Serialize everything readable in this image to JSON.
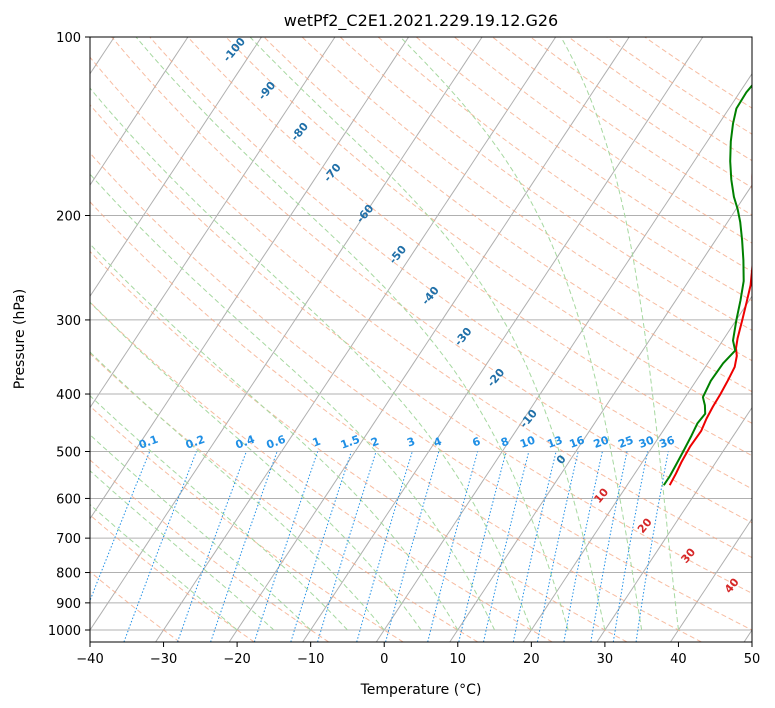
{
  "chart_data": {
    "type": "line",
    "title": "wetPf2_C2E1.2021.229.19.12.G26",
    "xlabel": "Temperature (°C)",
    "ylabel": "Pressure (hPa)",
    "xlim": [
      -40,
      50
    ],
    "ylim": [
      1050,
      100
    ],
    "y_scale": "log",
    "x_ticks": [
      -40,
      -30,
      -20,
      -10,
      0,
      10,
      20,
      30,
      40,
      50
    ],
    "y_ticks": [
      1000,
      900,
      800,
      700,
      600,
      500,
      400,
      300,
      200,
      100
    ],
    "grid": true,
    "colors": {
      "temperature": "#ee0000",
      "dewpoint": "#008000",
      "isotherm": "#b0b0b0",
      "dry_adiabat": "#f4a582",
      "moist_adiabat": "#a6d8a0",
      "mixing_ratio": "#1f8fe5",
      "moist_label": "#1f6fa8",
      "dry_label": "#d62728"
    },
    "series": [
      {
        "name": "Temperature",
        "points": [
          [
            25.8,
            570
          ],
          [
            25.6,
            545
          ],
          [
            25.3,
            520
          ],
          [
            25.1,
            490
          ],
          [
            25.2,
            462
          ],
          [
            24.8,
            440
          ],
          [
            24.6,
            420
          ],
          [
            24.5,
            400
          ],
          [
            24.3,
            380
          ],
          [
            24.0,
            360
          ],
          [
            23.3,
            345
          ],
          [
            22.5,
            335
          ],
          [
            21.8,
            322
          ],
          [
            20.8,
            300
          ],
          [
            19.8,
            280
          ],
          [
            18.8,
            262
          ],
          [
            17.4,
            244
          ],
          [
            15.8,
            226
          ],
          [
            14.2,
            210
          ],
          [
            12.6,
            196
          ],
          [
            11.0,
            185
          ],
          [
            9.3,
            172
          ],
          [
            7.7,
            160
          ],
          [
            6.4,
            148
          ],
          [
            5.5,
            137
          ],
          [
            4.4,
            126
          ],
          [
            3.7,
            116
          ],
          [
            3.6,
            109
          ],
          [
            4.4,
            104
          ],
          [
            5.0,
            100
          ]
        ]
      },
      {
        "name": "Dewpoint",
        "points": [
          [
            25.0,
            570
          ],
          [
            25.0,
            550
          ],
          [
            24.8,
            525
          ],
          [
            24.6,
            500
          ],
          [
            24.3,
            470
          ],
          [
            24.0,
            448
          ],
          [
            24.2,
            432
          ],
          [
            23.4,
            418
          ],
          [
            22.4,
            405
          ],
          [
            22.0,
            380
          ],
          [
            22.1,
            355
          ],
          [
            22.6,
            338
          ],
          [
            21.4,
            325
          ],
          [
            20.0,
            300
          ],
          [
            18.8,
            278
          ],
          [
            17.5,
            258
          ],
          [
            15.6,
            238
          ],
          [
            13.6,
            220
          ],
          [
            11.7,
            205
          ],
          [
            10.2,
            195
          ],
          [
            8.6,
            186
          ],
          [
            6.7,
            174
          ],
          [
            4.9,
            162
          ],
          [
            3.2,
            150
          ],
          [
            1.9,
            140
          ],
          [
            1.0,
            132
          ],
          [
            0.9,
            124
          ],
          [
            1.3,
            116
          ],
          [
            1.8,
            108
          ],
          [
            2.5,
            100
          ]
        ]
      }
    ],
    "mixing_ratio_labels": [
      "0.1",
      "0.2",
      "0.4",
      "0.6",
      "1",
      "1.5",
      "2",
      "3",
      "4",
      "6",
      "8",
      "10",
      "13",
      "16",
      "20",
      "25",
      "30",
      "36"
    ],
    "mixing_ratio_values": [
      0.1,
      0.2,
      0.4,
      0.6,
      1,
      1.5,
      2,
      3,
      4,
      6,
      8,
      10,
      13,
      16,
      20,
      25,
      30,
      36
    ],
    "moist_adiabat_labels": [
      "-100",
      "-90",
      "-80",
      "-70",
      "-60",
      "-50",
      "-40",
      "-30",
      "-20",
      "-10",
      "0"
    ],
    "moist_adiabat_values": [
      -100,
      -90,
      -80,
      -70,
      -60,
      -50,
      -40,
      -30,
      -20,
      -10,
      0
    ],
    "dry_adiabat_labels": [
      "10",
      "20",
      "30",
      "40"
    ],
    "dry_adiabat_values": [
      10,
      20,
      30,
      40
    ]
  }
}
